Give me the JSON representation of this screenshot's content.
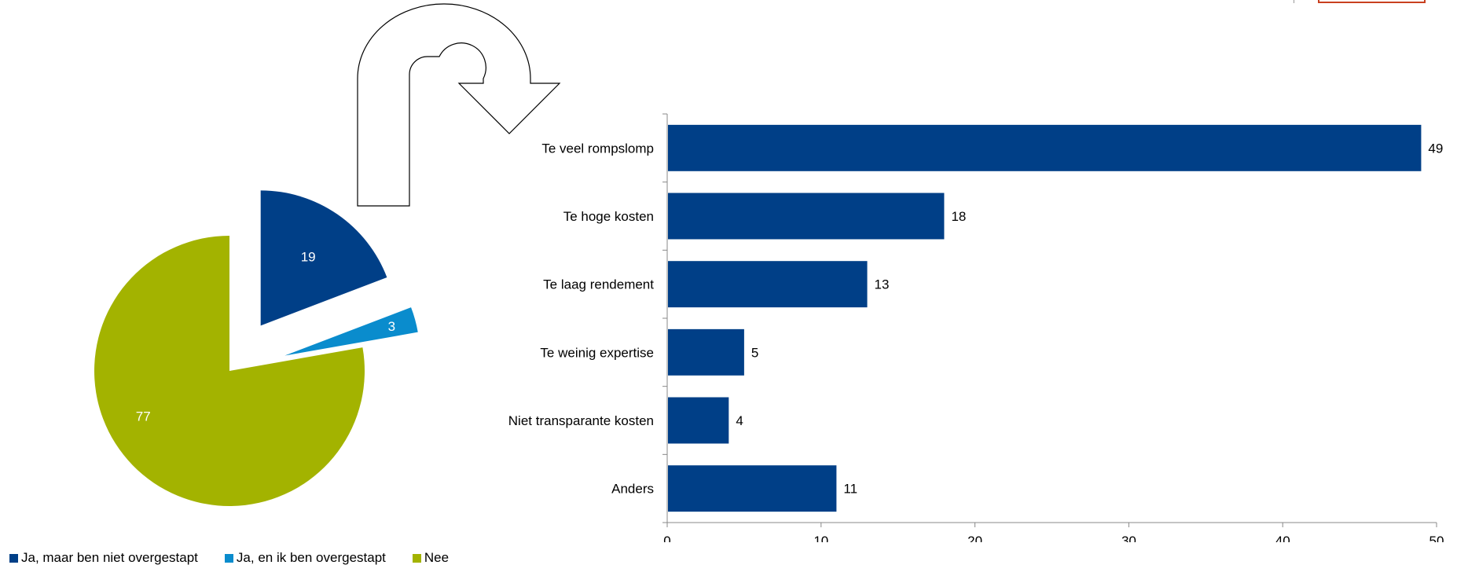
{
  "chart_data": [
    {
      "type": "pie",
      "slices": [
        {
          "name": "Ja, maar ben niet overgestapt",
          "value": 19,
          "label": "19",
          "color": "#003f87",
          "exploded": true
        },
        {
          "name": "Ja, en ik ben overgestapt",
          "value": 3,
          "label": "3",
          "color": "#0a8ccd",
          "exploded": true
        },
        {
          "name": "Nee",
          "value": 77,
          "label": "77",
          "color": "#a3b300",
          "exploded": false
        }
      ],
      "legend": [
        "Ja, maar ben niet overgestapt",
        "Ja, en ik ben overgestapt",
        "Nee"
      ],
      "legend_position": "bottom"
    },
    {
      "type": "bar",
      "orientation": "horizontal",
      "categories": [
        "Te veel rompslomp",
        "Te hoge kosten",
        "Te laag rendement",
        "Te weinig expertise",
        "Niet transparante kosten",
        "Anders"
      ],
      "values": [
        49,
        18,
        13,
        5,
        4,
        11
      ],
      "value_labels": [
        "49",
        "18",
        "13",
        "5",
        "4",
        "11"
      ],
      "color": "#003f87",
      "xlim": [
        0,
        50
      ],
      "xticks": [
        "0",
        "10",
        "20",
        "30",
        "40",
        "50"
      ],
      "grid": false
    }
  ]
}
